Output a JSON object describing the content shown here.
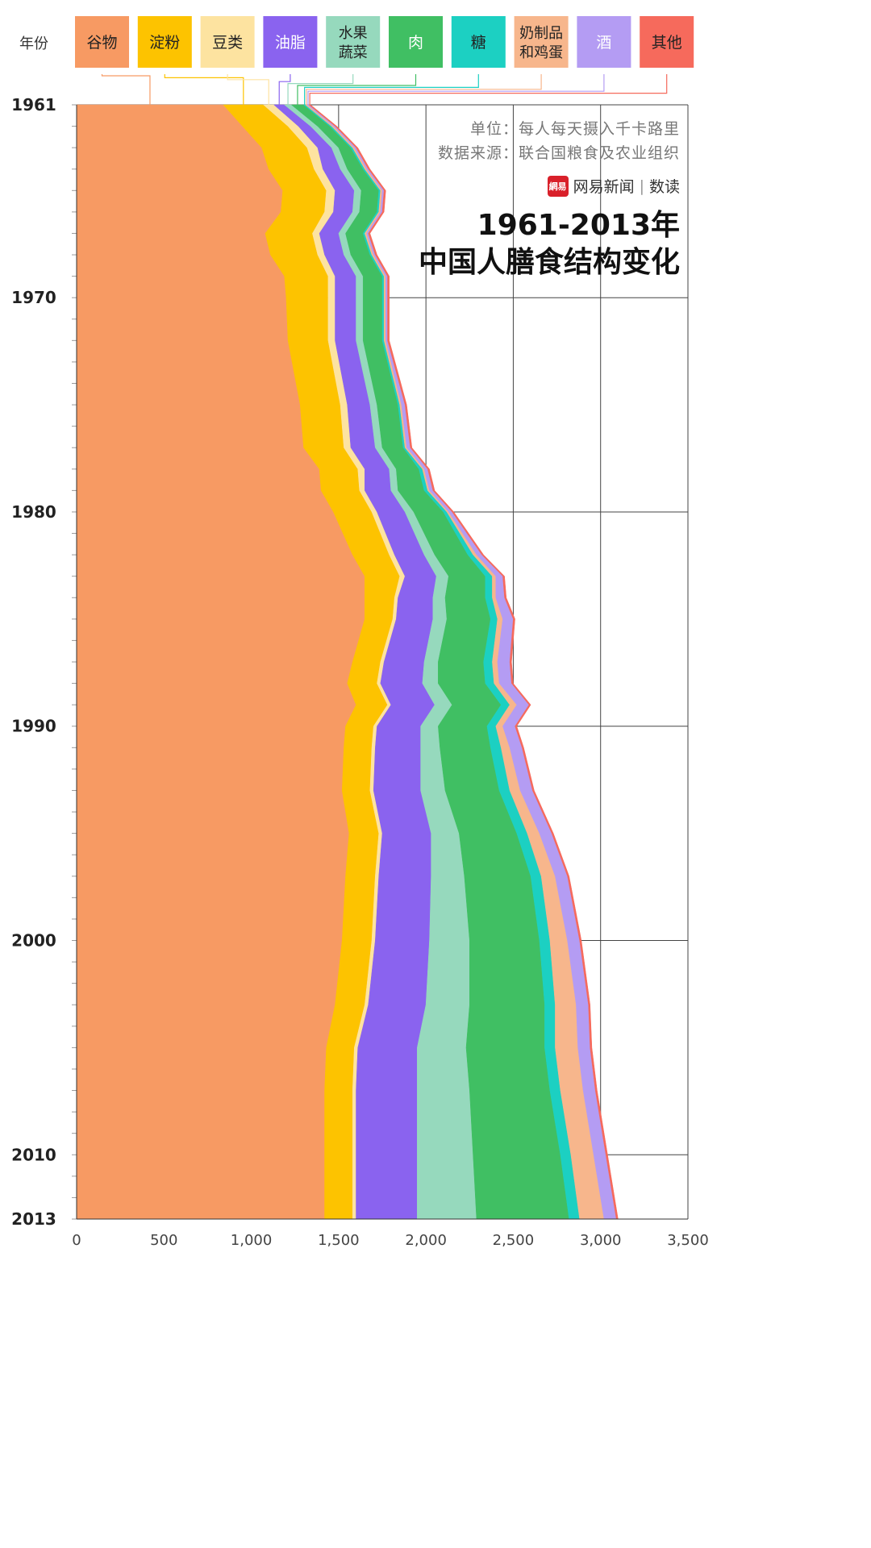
{
  "header_label": "年份",
  "info": {
    "unit": "单位：每人每天摄入千卡路里",
    "source": "数据来源：联合国粮食及农业组织",
    "brand_name": "网易新闻",
    "brand_sub": "数读",
    "title_line1": "1961-2013年",
    "title_line2": "中国人膳食结构变化"
  },
  "chart_data": {
    "type": "area",
    "orientation": "vertical-time-axis",
    "stacked": true,
    "y_label_title": "年份",
    "x_range": [
      0,
      3500
    ],
    "x_ticks": [
      0,
      500,
      1000,
      1500,
      2000,
      2500,
      3000,
      3500
    ],
    "x_tick_labels": [
      "0",
      "500",
      "1,000",
      "1,500",
      "2,000",
      "2,500",
      "3,000",
      "3,500"
    ],
    "year_range": [
      1961,
      2013
    ],
    "year_ticks": [
      1961,
      1970,
      1980,
      1990,
      2000,
      2010,
      2013
    ],
    "grid": true,
    "years": [
      1961,
      1962,
      1963,
      1964,
      1965,
      1966,
      1967,
      1968,
      1969,
      1970,
      1972,
      1975,
      1977,
      1978,
      1979,
      1980,
      1982,
      1983,
      1984,
      1985,
      1987,
      1988,
      1989,
      1990,
      1991,
      1993,
      1995,
      1997,
      2000,
      2003,
      2005,
      2007,
      2010,
      2013
    ],
    "series": [
      {
        "name": "谷物",
        "color": "#f79a63",
        "values": [
          840,
          950,
          1060,
          1100,
          1180,
          1170,
          1080,
          1110,
          1190,
          1200,
          1210,
          1280,
          1300,
          1390,
          1400,
          1470,
          1580,
          1650,
          1650,
          1650,
          1580,
          1550,
          1600,
          1540,
          1530,
          1520,
          1560,
          1540,
          1520,
          1480,
          1430,
          1420,
          1420,
          1420
        ]
      },
      {
        "name": "淀粉",
        "color": "#fdc300",
        "values": [
          230,
          260,
          260,
          260,
          250,
          250,
          270,
          270,
          250,
          240,
          230,
          230,
          230,
          220,
          220,
          220,
          210,
          200,
          170,
          160,
          160,
          170,
          180,
          160,
          160,
          160,
          170,
          170,
          170,
          170,
          160,
          160,
          160,
          160
        ]
      },
      {
        "name": "豆类",
        "color": "#fde3a0",
        "values": [
          60,
          60,
          60,
          50,
          50,
          50,
          40,
          40,
          40,
          40,
          40,
          40,
          40,
          40,
          30,
          30,
          30,
          30,
          20,
          20,
          20,
          20,
          20,
          20,
          20,
          20,
          20,
          20,
          20,
          20,
          20,
          20,
          20,
          20
        ]
      },
      {
        "name": "油脂",
        "color": "#8a63ef",
        "values": [
          60,
          70,
          80,
          100,
          110,
          110,
          110,
          110,
          120,
          120,
          120,
          130,
          140,
          140,
          150,
          160,
          170,
          180,
          200,
          210,
          230,
          240,
          250,
          250,
          260,
          270,
          280,
          300,
          310,
          330,
          340,
          350,
          350,
          350
        ]
      },
      {
        "name": "水果蔬菜",
        "color": "#96d9bd",
        "values": [
          40,
          40,
          40,
          40,
          40,
          40,
          40,
          40,
          40,
          40,
          40,
          40,
          40,
          40,
          40,
          50,
          60,
          70,
          70,
          80,
          80,
          90,
          100,
          100,
          110,
          140,
          160,
          190,
          230,
          250,
          280,
          300,
          320,
          340
        ]
      },
      {
        "name": "肉",
        "color": "#40bf63",
        "values": [
          70,
          70,
          70,
          90,
          100,
          100,
          100,
          110,
          110,
          110,
          110,
          120,
          120,
          130,
          150,
          170,
          190,
          210,
          230,
          250,
          260,
          270,
          280,
          280,
          290,
          310,
          330,
          380,
          400,
          430,
          450,
          460,
          500,
          530
        ]
      },
      {
        "name": "糖",
        "color": "#1cd0c2",
        "values": [
          10,
          10,
          10,
          10,
          10,
          10,
          10,
          10,
          10,
          10,
          10,
          10,
          10,
          20,
          20,
          20,
          30,
          40,
          40,
          40,
          50,
          50,
          50,
          50,
          60,
          60,
          60,
          60,
          60,
          60,
          60,
          60,
          60,
          60
        ]
      },
      {
        "name": "奶制品和鸡蛋",
        "color": "#f7b68c",
        "values": [
          10,
          10,
          10,
          10,
          10,
          10,
          10,
          10,
          10,
          10,
          10,
          10,
          10,
          10,
          10,
          10,
          20,
          20,
          20,
          30,
          30,
          30,
          40,
          40,
          50,
          60,
          70,
          80,
          100,
          120,
          130,
          130,
          130,
          140
        ]
      },
      {
        "name": "酒",
        "color": "#b49cf3",
        "values": [
          10,
          10,
          10,
          10,
          10,
          10,
          10,
          10,
          10,
          10,
          10,
          20,
          20,
          20,
          20,
          20,
          30,
          40,
          50,
          60,
          70,
          70,
          70,
          70,
          70,
          70,
          70,
          70,
          70,
          70,
          70,
          70,
          70,
          70
        ]
      },
      {
        "name": "其他",
        "color": "#f66a5c",
        "values": [
          10,
          10,
          10,
          10,
          10,
          10,
          10,
          10,
          10,
          10,
          10,
          10,
          10,
          10,
          10,
          10,
          10,
          10,
          10,
          10,
          10,
          10,
          10,
          10,
          10,
          10,
          10,
          10,
          10,
          10,
          10,
          10,
          10,
          10
        ]
      }
    ]
  },
  "legend_items": [
    {
      "line1": "谷物",
      "line2": "",
      "color": "#f79a63",
      "text_color": "#222"
    },
    {
      "line1": "淀粉",
      "line2": "",
      "color": "#fdc300",
      "text_color": "#222"
    },
    {
      "line1": "豆类",
      "line2": "",
      "color": "#fde3a0",
      "text_color": "#222"
    },
    {
      "line1": "油脂",
      "line2": "",
      "color": "#8a63ef",
      "text_color": "#ffffff"
    },
    {
      "line1": "水果",
      "line2": "蔬菜",
      "color": "#96d9bd",
      "text_color": "#222"
    },
    {
      "line1": "肉",
      "line2": "",
      "color": "#40bf63",
      "text_color": "#ffffff"
    },
    {
      "line1": "糖",
      "line2": "",
      "color": "#1cd0c2",
      "text_color": "#222"
    },
    {
      "line1": "奶制品",
      "line2": "和鸡蛋",
      "color": "#f7b68c",
      "text_color": "#222"
    },
    {
      "line1": "酒",
      "line2": "",
      "color": "#b49cf3",
      "text_color": "#ffffff"
    },
    {
      "line1": "其他",
      "line2": "",
      "color": "#f66a5c",
      "text_color": "#222"
    }
  ]
}
